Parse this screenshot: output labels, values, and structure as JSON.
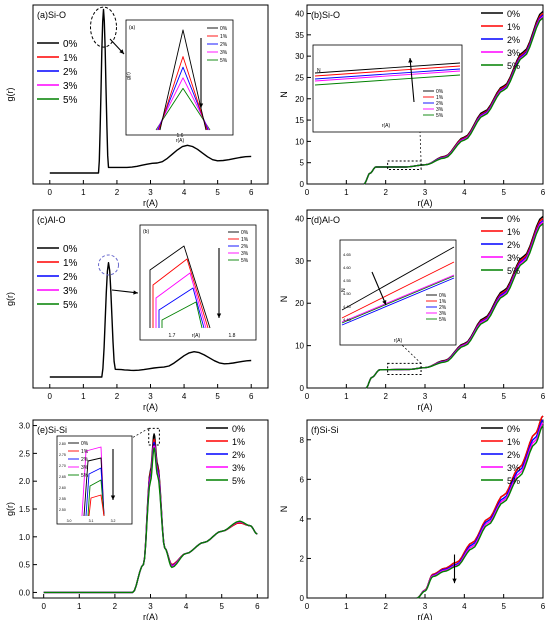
{
  "colors": {
    "0%": "#000000",
    "1%": "#ff0000",
    "2%": "#0000ff",
    "3%": "#ff00ff",
    "5%": "#008000"
  },
  "chart_data": [
    {
      "panel": "a",
      "type": "line",
      "title": "(a)Si-O",
      "xlabel": "r(A)",
      "ylabel": "g(r)",
      "xlim": [
        -0.5,
        6.5
      ],
      "ylim": [
        -0.5,
        7.6
      ],
      "xticks": [
        "0",
        "1",
        "2",
        "3",
        "4",
        "5",
        "6"
      ],
      "yticks": [],
      "legend": [
        "0%",
        "1%",
        "2%",
        "3%",
        "5%"
      ],
      "legend_position": "left",
      "series": [
        {
          "name": "0%",
          "x": [
            0,
            1.45,
            1.6,
            1.75,
            2.3,
            3.2,
            4.1,
            5,
            6
          ],
          "y": [
            0,
            0,
            7.4,
            0.25,
            0.25,
            0.45,
            1.25,
            0.55,
            0.75
          ]
        }
      ],
      "inset": {
        "label": "(a)",
        "xlabel": "r(A)",
        "ylabel": "g(r)",
        "xtick": "1.6",
        "legend": [
          "0%",
          "1%",
          "2%",
          "3%",
          "5%"
        ],
        "peaks": [
          7.4,
          6.9,
          6.7,
          6.5,
          6.3
        ],
        "arrow": "down"
      }
    },
    {
      "panel": "b",
      "type": "line",
      "title": "(b)Si-O",
      "xlabel": "r(A)",
      "ylabel": "N",
      "xlim": [
        0,
        6
      ],
      "ylim": [
        0,
        42
      ],
      "xticks": [
        "0",
        "1",
        "2",
        "3",
        "4",
        "5",
        "6"
      ],
      "yticks": [
        "0",
        "5",
        "10",
        "15",
        "20",
        "25",
        "30",
        "35",
        "40"
      ],
      "legend": [
        "0%",
        "1%",
        "2%",
        "3%",
        "5%"
      ],
      "legend_position": "top-right",
      "series": [
        {
          "name": "0%",
          "x": [
            1.45,
            1.6,
            1.75,
            2.5,
            3,
            3.5,
            4,
            4.5,
            5,
            5.5,
            6
          ],
          "y": [
            0,
            2.5,
            4,
            4,
            4.5,
            6.5,
            11,
            17,
            23,
            31,
            40.5
          ]
        },
        {
          "name": "1%",
          "x": [
            1.45,
            1.6,
            1.75,
            2.5,
            3,
            3.5,
            4,
            4.5,
            5,
            5.5,
            6
          ],
          "y": [
            0,
            2.5,
            4,
            4,
            4.5,
            6.4,
            10.8,
            16.7,
            22.7,
            30.6,
            40
          ]
        },
        {
          "name": "2%",
          "x": [
            1.45,
            1.6,
            1.75,
            2.5,
            3,
            3.5,
            4,
            4.5,
            5,
            5.5,
            6
          ],
          "y": [
            0,
            2.5,
            4,
            4,
            4.5,
            6.3,
            10.6,
            16.5,
            22.4,
            30.3,
            39.6
          ]
        },
        {
          "name": "3%",
          "x": [
            1.45,
            1.6,
            1.75,
            2.5,
            3,
            3.5,
            4,
            4.5,
            5,
            5.5,
            6
          ],
          "y": [
            0,
            2.5,
            4,
            4,
            4.5,
            6.2,
            10.5,
            16.3,
            22.2,
            30,
            39.3
          ]
        },
        {
          "name": "5%",
          "x": [
            1.45,
            1.6,
            1.75,
            2.5,
            3,
            3.5,
            4,
            4.5,
            5,
            5.5,
            6
          ],
          "y": [
            0,
            2.5,
            4,
            4,
            4.5,
            6.1,
            10.3,
            16.1,
            22,
            29.8,
            39
          ]
        }
      ],
      "inset": {
        "xlabel": "r(A)",
        "ylabel": "N",
        "legend": [
          "0%",
          "1%",
          "2%",
          "3%",
          "5%"
        ],
        "arrow": "up"
      }
    },
    {
      "panel": "c",
      "type": "line",
      "title": "(c)Al-O",
      "xlabel": "r(A)",
      "ylabel": "g(r)",
      "xlim": [
        -0.5,
        6.5
      ],
      "ylim": [
        -0.5,
        7.6
      ],
      "xticks": [
        "0",
        "1",
        "2",
        "3",
        "4",
        "5",
        "6"
      ],
      "yticks": [],
      "legend": [
        "0%",
        "1%",
        "2%",
        "3%",
        "5%"
      ],
      "legend_position": "left",
      "series": [
        {
          "name": "0%",
          "x": [
            0,
            1.55,
            1.75,
            1.95,
            2.5,
            3.4,
            4.3,
            5.2,
            6
          ],
          "y": [
            0,
            0,
            5.2,
            0.35,
            0.3,
            0.45,
            1.15,
            0.6,
            0.75
          ]
        }
      ],
      "inset": {
        "label": "(b)",
        "xlabel": "r(A)",
        "xticks": [
          "1.7",
          "1.8"
        ],
        "legend": [
          "0%",
          "1%",
          "2%",
          "3%",
          "5%"
        ],
        "arrow": "down"
      }
    },
    {
      "panel": "d",
      "type": "line",
      "title": "(d)Al-O",
      "xlabel": "r(A)",
      "ylabel": "N",
      "xlim": [
        0,
        6
      ],
      "ylim": [
        0,
        42
      ],
      "xticks": [
        "0",
        "1",
        "2",
        "3",
        "4",
        "5",
        "6"
      ],
      "yticks": [
        "0",
        "10",
        "20",
        "30",
        "40"
      ],
      "legend": [
        "0%",
        "1%",
        "2%",
        "3%",
        "5%"
      ],
      "legend_position": "top-right",
      "series": [
        {
          "name": "0%",
          "x": [
            1.5,
            1.65,
            1.85,
            2.6,
            3,
            3.5,
            4,
            4.5,
            5,
            5.5,
            6
          ],
          "y": [
            0,
            2.5,
            4.3,
            4.4,
            4.8,
            6.5,
            10.5,
            16.5,
            23,
            31,
            40.5
          ]
        },
        {
          "name": "1%",
          "x": [
            1.5,
            1.65,
            1.85,
            2.6,
            3,
            3.5,
            4,
            4.5,
            5,
            5.5,
            6
          ],
          "y": [
            0,
            2.5,
            4.3,
            4.4,
            4.8,
            6.4,
            10.3,
            16.2,
            22.6,
            30.6,
            40
          ]
        },
        {
          "name": "2%",
          "x": [
            1.5,
            1.65,
            1.85,
            2.6,
            3,
            3.5,
            4,
            4.5,
            5,
            5.5,
            6
          ],
          "y": [
            0,
            2.5,
            4.3,
            4.4,
            4.8,
            6.3,
            10.2,
            16,
            22.3,
            30.2,
            39.5
          ]
        },
        {
          "name": "3%",
          "x": [
            1.5,
            1.65,
            1.85,
            2.6,
            3,
            3.5,
            4,
            4.5,
            5,
            5.5,
            6
          ],
          "y": [
            0,
            2.5,
            4.3,
            4.4,
            4.8,
            6.2,
            10.1,
            15.8,
            22,
            29.9,
            39.2
          ]
        },
        {
          "name": "5%",
          "x": [
            1.5,
            1.65,
            1.85,
            2.6,
            3,
            3.5,
            4,
            4.5,
            5,
            5.5,
            6
          ],
          "y": [
            0,
            2.5,
            4.3,
            4.4,
            4.8,
            6.1,
            9.9,
            15.5,
            21.7,
            29.5,
            38.8
          ]
        }
      ],
      "inset": {
        "xlabel": "r(A)",
        "ylabel": "N",
        "yticks": [
          "4.65",
          "4.60",
          "4.55",
          "4.50",
          "4.45",
          "4.40"
        ],
        "legend": [
          "0%",
          "1%",
          "2%",
          "3%",
          "5%"
        ],
        "arrow": "down"
      }
    },
    {
      "panel": "e",
      "type": "line",
      "title": "(e)Si-Si",
      "xlabel": "r(A)",
      "ylabel": "g(r)",
      "xlim": [
        -0.3,
        6.3
      ],
      "ylim": [
        -0.1,
        3.1
      ],
      "xticks": [
        "0",
        "1",
        "2",
        "3",
        "4",
        "5",
        "6"
      ],
      "yticks": [
        "0.0",
        "0.5",
        "1.0",
        "1.5",
        "2.0",
        "2.5",
        "3.0"
      ],
      "legend": [
        "0%",
        "1%",
        "2%",
        "3%",
        "5%"
      ],
      "legend_position": "top-right",
      "series": [
        {
          "name": "0%",
          "x": [
            0,
            2.5,
            2.8,
            3.0,
            3.1,
            3.2,
            3.4,
            3.6,
            4,
            4.5,
            5,
            5.5,
            5.8,
            6
          ],
          "y": [
            0,
            0,
            0.5,
            2.2,
            2.85,
            2.3,
            0.8,
            0.5,
            0.7,
            0.9,
            1.1,
            1.25,
            1.2,
            1.05
          ]
        },
        {
          "name": "1%",
          "x": [
            0,
            2.5,
            2.8,
            3.0,
            3.1,
            3.2,
            3.4,
            3.6,
            4,
            4.5,
            5,
            5.5,
            5.8,
            6
          ],
          "y": [
            0,
            0,
            0.5,
            2.15,
            2.75,
            2.25,
            0.8,
            0.5,
            0.7,
            0.9,
            1.1,
            1.25,
            1.2,
            1.05
          ]
        },
        {
          "name": "2%",
          "x": [
            0,
            2.5,
            2.8,
            3.0,
            3.1,
            3.2,
            3.4,
            3.6,
            4,
            4.5,
            5,
            5.5,
            5.8,
            6
          ],
          "y": [
            0,
            0,
            0.5,
            2.1,
            2.7,
            2.2,
            0.8,
            0.48,
            0.7,
            0.9,
            1.1,
            1.27,
            1.2,
            1.05
          ]
        },
        {
          "name": "3%",
          "x": [
            0,
            2.5,
            2.8,
            3.0,
            3.1,
            3.2,
            3.4,
            3.6,
            4,
            4.5,
            5,
            5.5,
            5.8,
            6
          ],
          "y": [
            0,
            0,
            0.5,
            2.05,
            2.65,
            2.15,
            0.8,
            0.47,
            0.7,
            0.9,
            1.1,
            1.27,
            1.2,
            1.05
          ]
        },
        {
          "name": "5%",
          "x": [
            0,
            2.5,
            2.8,
            3.0,
            3.1,
            3.2,
            3.4,
            3.6,
            4,
            4.5,
            5,
            5.5,
            5.8,
            6
          ],
          "y": [
            0,
            0,
            0.5,
            2.0,
            2.6,
            2.1,
            0.8,
            0.45,
            0.7,
            0.9,
            1.1,
            1.28,
            1.2,
            1.05
          ]
        }
      ],
      "inset": {
        "xticks": [
          "3.0",
          "3.1",
          "3.2"
        ],
        "yticks": [
          "2.80",
          "2.75",
          "2.70",
          "2.65",
          "2.60",
          "2.55",
          "2.50"
        ],
        "legend": [
          "0%",
          "1%",
          "2%",
          "3%",
          "5%"
        ],
        "arrow": "down"
      }
    },
    {
      "panel": "f",
      "type": "line",
      "title": "(f)Si-Si",
      "xlabel": "r(A)",
      "ylabel": "N",
      "xlim": [
        0,
        6
      ],
      "ylim": [
        0,
        9
      ],
      "xticks": [
        "0",
        "1",
        "2",
        "3",
        "4",
        "5",
        "6"
      ],
      "yticks": [
        "0",
        "2",
        "4",
        "6",
        "8"
      ],
      "legend": [
        "0%",
        "1%",
        "2%",
        "3%",
        "5%"
      ],
      "legend_position": "top-right",
      "series": [
        {
          "name": "0%",
          "x": [
            2.8,
            3.0,
            3.2,
            3.5,
            3.8,
            4.2,
            4.6,
            5,
            5.4,
            5.8,
            6
          ],
          "y": [
            0,
            0.4,
            1.2,
            1.5,
            1.8,
            2.8,
            4,
            5.2,
            6.6,
            8.3,
            9.2
          ]
        },
        {
          "name": "1%",
          "x": [
            2.8,
            3.0,
            3.2,
            3.5,
            3.8,
            4.2,
            4.6,
            5,
            5.4,
            5.8,
            6
          ],
          "y": [
            0,
            0.4,
            1.2,
            1.5,
            1.8,
            2.8,
            4,
            5.2,
            6.6,
            8.3,
            9.2
          ]
        },
        {
          "name": "2%",
          "x": [
            2.8,
            3.0,
            3.2,
            3.5,
            3.8,
            4.2,
            4.6,
            5,
            5.4,
            5.8,
            6
          ],
          "y": [
            0,
            0.38,
            1.15,
            1.45,
            1.7,
            2.7,
            3.9,
            5.05,
            6.45,
            8.1,
            9.0
          ]
        },
        {
          "name": "3%",
          "x": [
            2.8,
            3.0,
            3.2,
            3.5,
            3.8,
            4.2,
            4.6,
            5,
            5.4,
            5.8,
            6
          ],
          "y": [
            0,
            0.37,
            1.12,
            1.4,
            1.65,
            2.6,
            3.8,
            4.95,
            6.3,
            7.95,
            8.85
          ]
        },
        {
          "name": "5%",
          "x": [
            2.8,
            3.0,
            3.2,
            3.5,
            3.8,
            4.2,
            4.6,
            5,
            5.4,
            5.8,
            6
          ],
          "y": [
            0,
            0.35,
            1.08,
            1.35,
            1.6,
            2.5,
            3.7,
            4.85,
            6.15,
            7.8,
            8.7
          ]
        }
      ]
    }
  ]
}
